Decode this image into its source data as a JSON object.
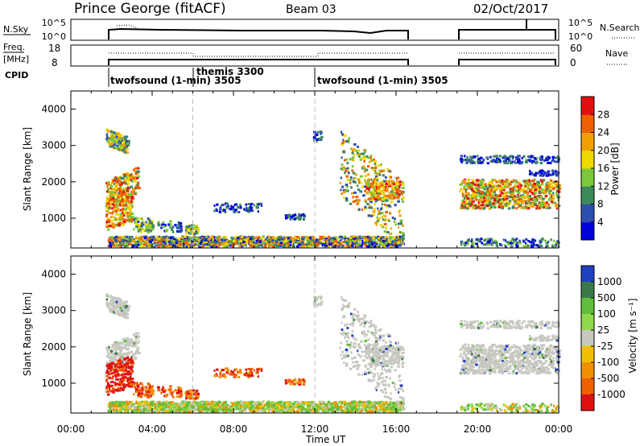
{
  "header": {
    "station": "Prince George (fitACF)",
    "beam": "Beam 03",
    "date": "02/Oct/2017"
  },
  "small_panels": {
    "nsky_label": "N.Sky",
    "nsky_ticks": [
      "10^5",
      "10^0"
    ],
    "nsearch_ticks": [
      "10^5",
      "10^0"
    ],
    "nsearch_label": "N.Search",
    "freq_label_line1": "Freq.",
    "freq_label_line2": "[MHz]",
    "freq_ticks": [
      "18",
      "8"
    ],
    "nave_ticks": [
      "60",
      "0"
    ],
    "nave_label": "Nave",
    "cpid_label": "CPID"
  },
  "cpid_segments": [
    {
      "label": "twofsound (1-min) 3505"
    },
    {
      "label": "themis 3300"
    },
    {
      "label": "twofsound (1-min) 3505"
    }
  ],
  "chart_data": [
    {
      "type": "heatmap",
      "name": "power",
      "xlabel": "Time UT",
      "ylabel": "Slant Range [km]",
      "x_ticks": [
        "00:00",
        "04:00",
        "08:00",
        "12:00",
        "16:00",
        "20:00",
        "00:00"
      ],
      "xlim_hours": [
        0,
        24
      ],
      "ylim_km": [
        180,
        4500
      ],
      "y_ticks": [
        1000,
        2000,
        3000,
        4000
      ],
      "colorbar_label": "Power [dB]",
      "colorbar_ticks": [
        "4",
        "8",
        "12",
        "16",
        "20",
        "24",
        "28"
      ],
      "colors": [
        "#0000dd",
        "#2f4fb0",
        "#3a8a5a",
        "#7cc83a",
        "#f0d800",
        "#f0a000",
        "#f06000",
        "#e01010"
      ],
      "data_gaps_hours": [
        [
          0,
          1.6
        ],
        [
          16.4,
          19.1
        ]
      ],
      "cpid_change_hours": [
        6.0,
        12.0
      ]
    },
    {
      "type": "heatmap",
      "name": "velocity",
      "xlabel": "Time UT",
      "ylabel": "Slant Range [km]",
      "x_ticks": [
        "00:00",
        "04:00",
        "08:00",
        "12:00",
        "16:00",
        "20:00",
        "00:00"
      ],
      "xlim_hours": [
        0,
        24
      ],
      "ylim_km": [
        180,
        4500
      ],
      "y_ticks": [
        1000,
        2000,
        3000,
        4000
      ],
      "colorbar_label": "Velocity [m s⁻¹]",
      "colorbar_ticks": [
        "1000",
        "500",
        "100",
        "25",
        "-25",
        "-100",
        "-500",
        "-1000"
      ],
      "colors": [
        "#2040c0",
        "#3a7a4a",
        "#5fbf3a",
        "#8fd84a",
        "#c8c8c0",
        "#f0c000",
        "#f09000",
        "#f06000",
        "#e01010"
      ],
      "ground_scatter_color": "#c8c8c0"
    }
  ]
}
